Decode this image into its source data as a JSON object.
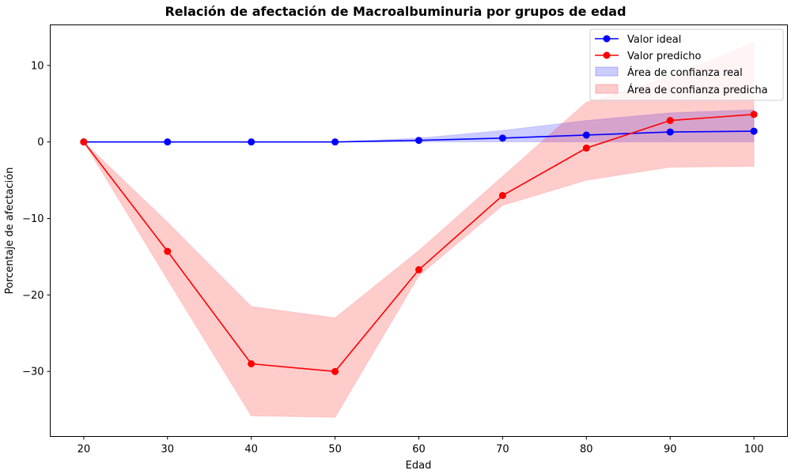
{
  "chart_data": {
    "type": "line",
    "title": "Relación de afectación de Macroalbuminuria por grupos de edad",
    "xlabel": "Edad",
    "ylabel": "Porcentaje de afectación",
    "x": [
      20,
      30,
      40,
      50,
      60,
      70,
      80,
      90,
      100
    ],
    "xticks": [
      20,
      30,
      40,
      50,
      60,
      70,
      80,
      90,
      100
    ],
    "yticks": [
      -30,
      -20,
      -10,
      0,
      10
    ],
    "ytick_labels": [
      "−30",
      "−20",
      "−10",
      "0",
      "10"
    ],
    "xlim": [
      16,
      104
    ],
    "ylim": [
      -38.5,
      15.3
    ],
    "grid": false,
    "legend_position": "top-right",
    "series": [
      {
        "name": "Valor ideal",
        "color": "#0000ff",
        "marker": "circle",
        "values": [
          0,
          0,
          0,
          0,
          0.2,
          0.5,
          0.9,
          1.3,
          1.4
        ]
      },
      {
        "name": "Valor predicho",
        "color": "#ff0000",
        "marker": "circle",
        "values": [
          0,
          -14.3,
          -29.0,
          -30.0,
          -16.7,
          -7.0,
          -0.8,
          2.8,
          3.6
        ]
      }
    ],
    "bands": [
      {
        "name": "Área de confianza real",
        "color": "#0000ff",
        "lower": [
          0,
          0,
          0,
          0,
          0,
          0,
          0,
          0,
          0
        ],
        "upper": [
          0,
          0,
          0,
          0,
          0.5,
          1.5,
          2.8,
          3.8,
          4.2
        ]
      },
      {
        "name": "Área de confianza predicha",
        "color": "#ff0000",
        "lower": [
          0,
          -18.0,
          -35.8,
          -36.0,
          -17.5,
          -8.3,
          -5.0,
          -3.3,
          -3.2
        ],
        "upper": [
          0,
          -10.5,
          -21.5,
          -23.0,
          -14.2,
          -4.5,
          5.2,
          8.5,
          13.0
        ]
      }
    ]
  }
}
